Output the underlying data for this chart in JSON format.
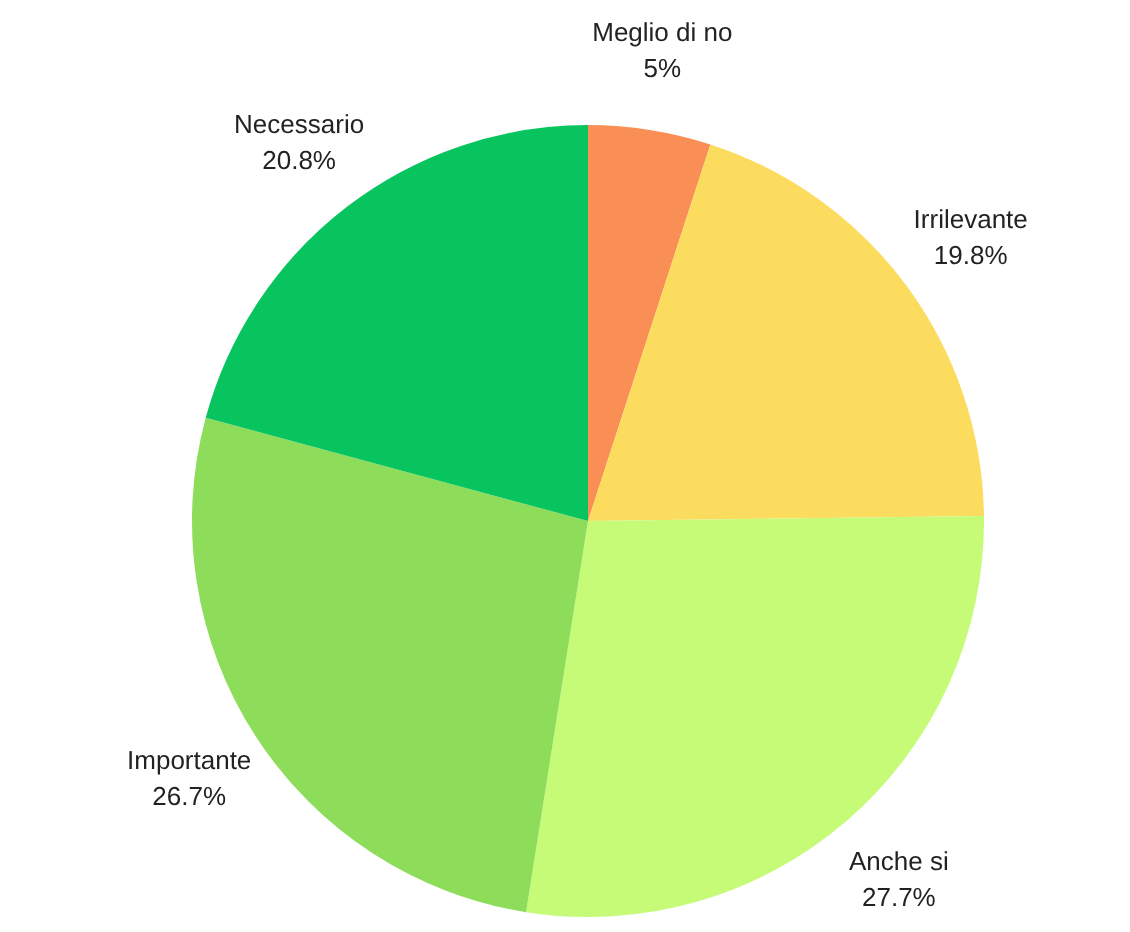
{
  "chart_data": {
    "type": "pie",
    "categories": [
      "Meglio di no",
      "Irrilevante",
      "Anche si",
      "Importante",
      "Necessario"
    ],
    "values": [
      5,
      19.8,
      27.7,
      26.7,
      20.8
    ],
    "colors": [
      "#f98f55",
      "#fcdc5e",
      "#c5fb77",
      "#8ddc5a",
      "#07c45f"
    ],
    "value_labels": [
      "5%",
      "19.8%",
      "27.7%",
      "26.7%",
      "20.8%"
    ],
    "legend": false
  }
}
